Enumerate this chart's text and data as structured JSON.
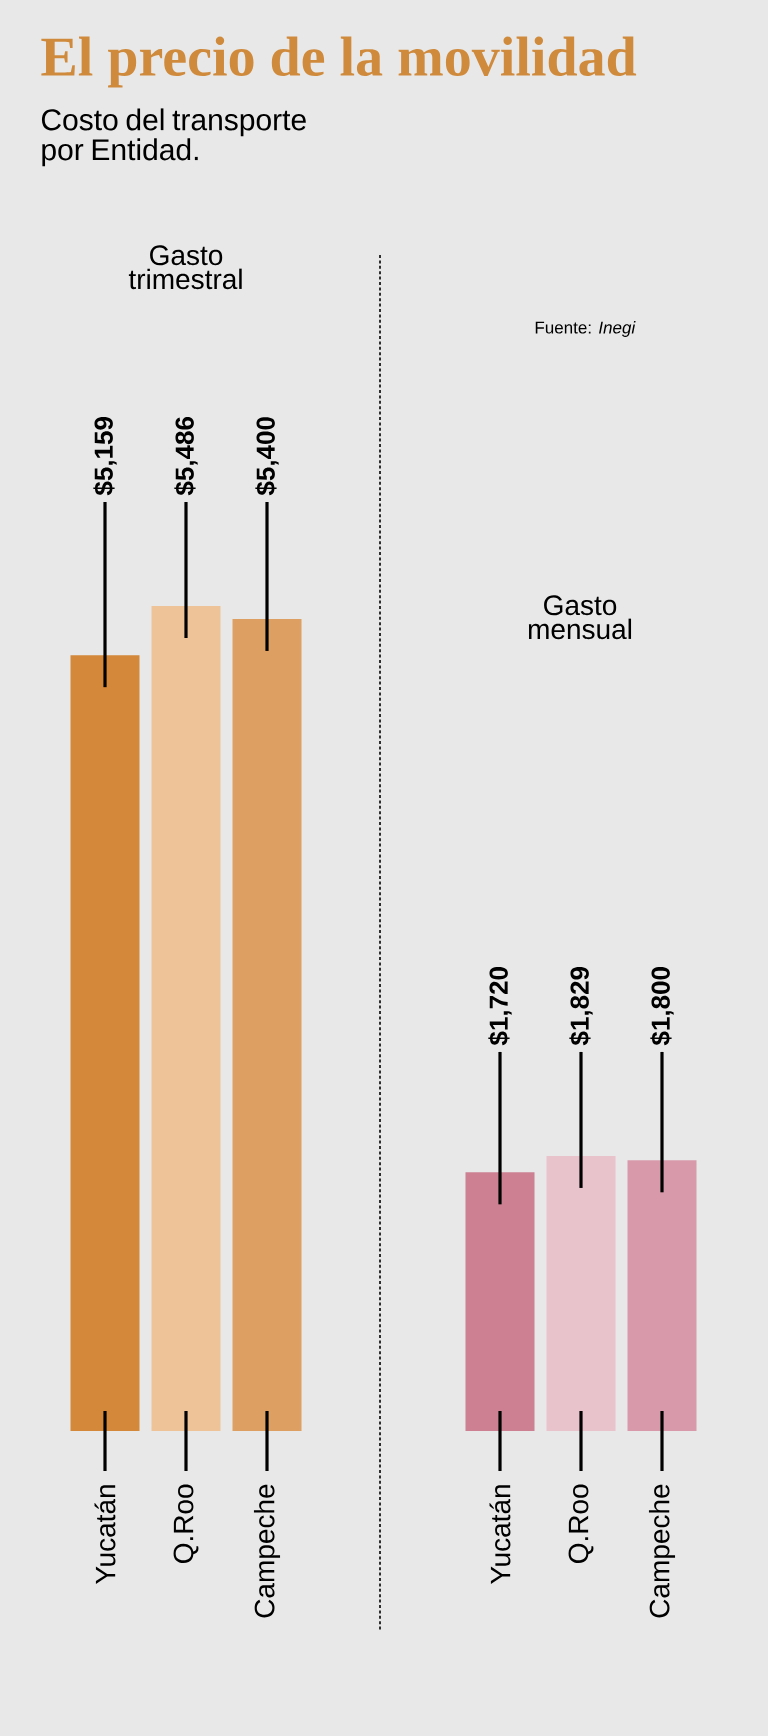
{
  "chart_data": [
    {
      "type": "bar",
      "title": "El precio de la movilidad",
      "subtitle": "Costo del transporte por Entidad.",
      "annotations": [
        "Gasto trimestral"
      ],
      "categories": [
        "Yucatán",
        "Q.Roo",
        "Campeche"
      ],
      "values": [
        5159,
        5486,
        5400
      ],
      "value_labels": [
        "$5,159",
        "$5,486",
        "$5,400"
      ],
      "colors": [
        "#d4883a",
        "#eec397",
        "#dda062"
      ],
      "tick_labels": false
    },
    {
      "type": "bar",
      "annotations": [
        "Gasto mensual",
        "Fuente: *Inegi*"
      ],
      "categories": [
        "Yucatán",
        "Q.Roo",
        "Campeche"
      ],
      "values": [
        1720,
        1829,
        1800
      ],
      "value_labels": [
        "$1,720",
        "$1,829",
        "$1,800"
      ],
      "colors": [
        "#cc8092",
        "#e8c3cb",
        "#d89aab"
      ],
      "tick_labels": false
    }
  ]
}
